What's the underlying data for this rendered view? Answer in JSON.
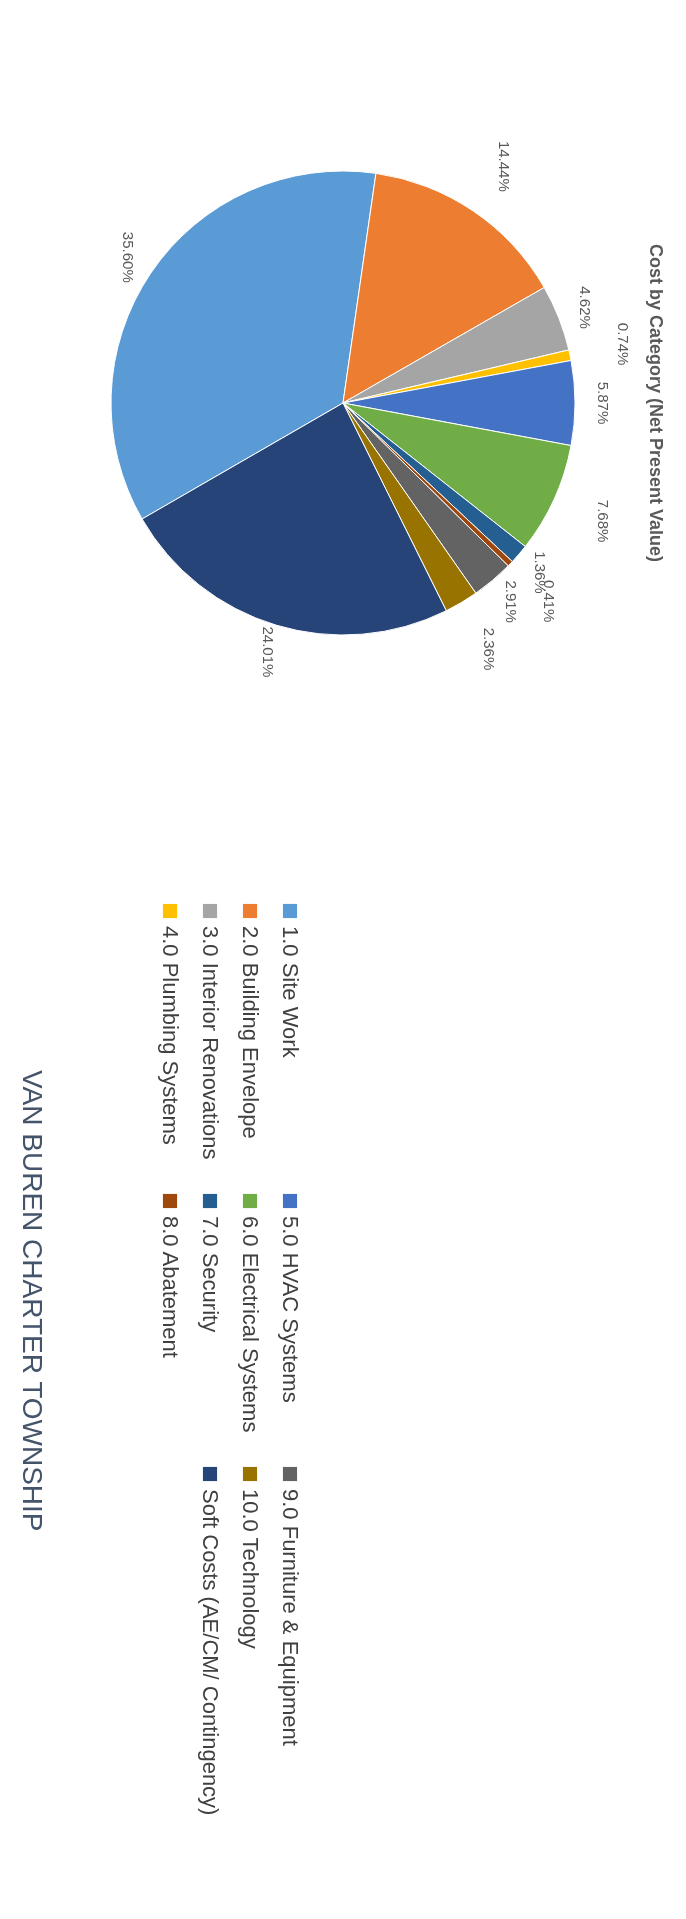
{
  "chart_data": {
    "type": "pie",
    "title": "Cost by Category (Net Present Value)",
    "categories": [
      "1.0 Site Work",
      "2.0 Building Envelope",
      "3.0 Interior Renovations",
      "4.0 Plumbing Systems",
      "5.0 HVAC Systems",
      "6.0 Electrical Systems",
      "7.0 Security",
      "8.0 Abatement",
      "9.0 Furniture & Equipment",
      "10.0 Technology",
      "Soft Costs (AE/CM/ Contingency)"
    ],
    "values": [
      35.6,
      14.44,
      4.62,
      0.74,
      5.87,
      7.68,
      1.36,
      0.41,
      2.91,
      2.36,
      24.01
    ],
    "colors": [
      "#5b9bd5",
      "#ed7d31",
      "#a5a5a5",
      "#ffc000",
      "#4472c4",
      "#70ad47",
      "#255e91",
      "#9e480e",
      "#636363",
      "#997300",
      "#264478"
    ],
    "value_labels": [
      "35.60%",
      "14.44%",
      "4.62%",
      "0.74%",
      "5.87%",
      "7.68%",
      "1.36%",
      "0.41%",
      "2.91%",
      "2.36%",
      "24.01%"
    ],
    "legend": "bottom",
    "annotations": [
      "VAN BUREN CHARTER TOWNSHIP"
    ]
  }
}
